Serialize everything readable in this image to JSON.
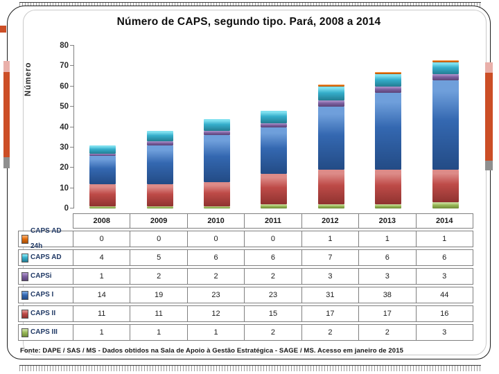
{
  "title": "Número de CAPS, segundo tipo. Pará, 2008 a 2014",
  "footer": "Fonte: DAPE / SAS / MS - Dados obtidos na Sala de  Apoio  à Gestão Estratégica - SAGE / MS. Acesso em janeiro de 2015",
  "decor": {
    "accent_orange": "#cc4e26",
    "accent_pink": "#e9b0aa",
    "accent_gray": "#8f8f8f"
  },
  "chart_data": {
    "type": "bar",
    "stacked": true,
    "title": "Número de CAPS, segundo tipo. Pará, 2008 a 2014",
    "xlabel": "",
    "ylabel": "Número",
    "ylim": [
      0,
      80
    ],
    "ytick_step": 10,
    "grid": false,
    "legend_position": "table-left",
    "categories": [
      "2008",
      "2009",
      "2010",
      "2011",
      "2012",
      "2013",
      "2014"
    ],
    "series": [
      {
        "name": "CAPS AD 24h",
        "base": "#e46c0a",
        "light": "#f6a55f",
        "dark": "#a34e07",
        "values": [
          0,
          0,
          0,
          0,
          1,
          1,
          1
        ]
      },
      {
        "name": "CAPS AD",
        "base": "#35aecb",
        "light": "#7fe0ef",
        "dark": "#237d92",
        "values": [
          4,
          5,
          6,
          6,
          7,
          6,
          6
        ]
      },
      {
        "name": "CAPSi",
        "base": "#7d60a0",
        "light": "#a78cc5",
        "dark": "#5a4377",
        "values": [
          1,
          2,
          2,
          2,
          3,
          3,
          3
        ]
      },
      {
        "name": "CAPS I",
        "base": "#3468b1",
        "light": "#6f9fdb",
        "dark": "#234b85",
        "values": [
          14,
          19,
          23,
          23,
          31,
          38,
          44
        ]
      },
      {
        "name": "CAPS II",
        "base": "#be4b48",
        "light": "#dd8b88",
        "dark": "#8f3330",
        "values": [
          11,
          11,
          12,
          15,
          17,
          17,
          16
        ]
      },
      {
        "name": "CAPS III",
        "base": "#9aba58",
        "light": "#c7dc9b",
        "dark": "#6f8b39",
        "values": [
          1,
          1,
          1,
          2,
          2,
          2,
          3
        ]
      }
    ],
    "stack_order_bottom_to_top": [
      "CAPS III",
      "CAPS II",
      "CAPS I",
      "CAPSi",
      "CAPS AD",
      "CAPS AD 24h"
    ]
  }
}
